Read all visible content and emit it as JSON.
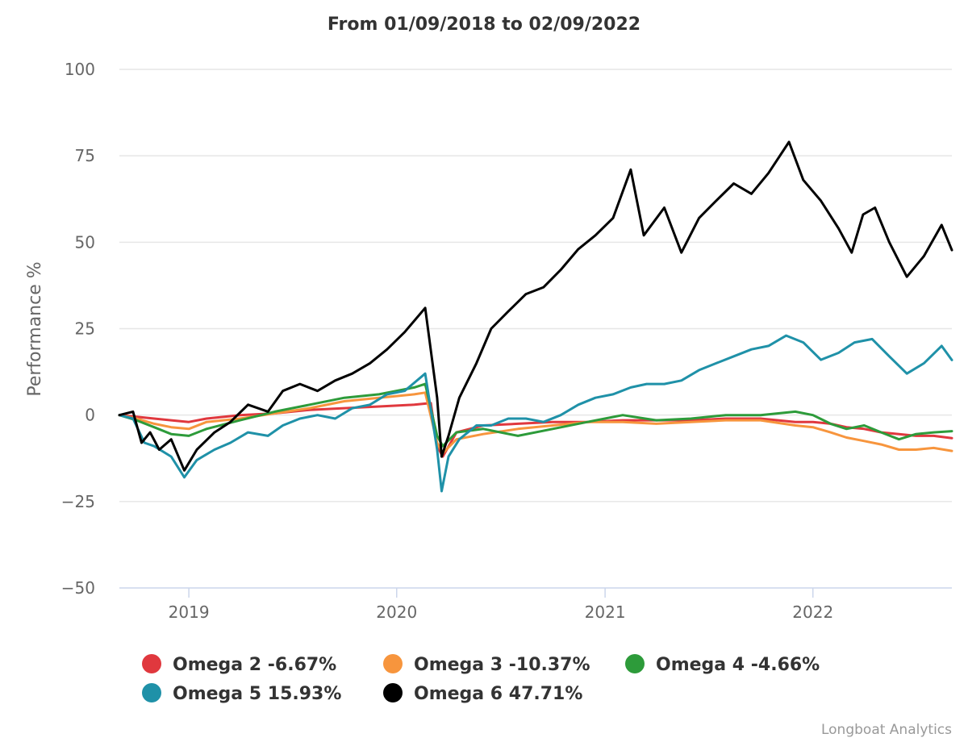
{
  "chart_data": {
    "type": "line",
    "title": "From 01/09/2018 to 02/09/2022",
    "ylabel": "Performance %",
    "xlabel": "",
    "ylim": [
      -50,
      100
    ],
    "xlim": [
      "2018-09-01",
      "2022-09-02"
    ],
    "yticks": [
      "100",
      "75",
      "50",
      "25",
      "0",
      "−25",
      "−50"
    ],
    "ytick_values": [
      100,
      75,
      50,
      25,
      0,
      -25,
      -50
    ],
    "xticks": [
      {
        "label": "2019",
        "date": "2019-01-01"
      },
      {
        "label": "2020",
        "date": "2020-01-01"
      },
      {
        "label": "2021",
        "date": "2021-01-01"
      },
      {
        "label": "2022",
        "date": "2022-01-01"
      }
    ],
    "grid": true,
    "legend_position": "bottom",
    "series": [
      {
        "name": "Omega 2 -6.67%",
        "color": "#e0383e",
        "points": [
          [
            "2018-09-01",
            0
          ],
          [
            "2018-10-01",
            -0.5
          ],
          [
            "2018-11-01",
            -1.0
          ],
          [
            "2018-12-01",
            -1.5
          ],
          [
            "2019-01-01",
            -2.0
          ],
          [
            "2019-02-01",
            -1.0
          ],
          [
            "2019-04-01",
            0
          ],
          [
            "2019-06-01",
            0.5
          ],
          [
            "2019-08-01",
            1.5
          ],
          [
            "2019-10-01",
            2.0
          ],
          [
            "2019-12-01",
            2.5
          ],
          [
            "2020-02-01",
            3.0
          ],
          [
            "2020-03-01",
            3.5
          ],
          [
            "2020-03-12",
            -9
          ],
          [
            "2020-03-22",
            -12
          ],
          [
            "2020-04-15",
            -5
          ],
          [
            "2020-06-01",
            -3
          ],
          [
            "2020-08-01",
            -2.5
          ],
          [
            "2020-10-01",
            -2
          ],
          [
            "2020-12-01",
            -2
          ],
          [
            "2021-02-01",
            -1.5
          ],
          [
            "2021-04-01",
            -1.5
          ],
          [
            "2021-06-01",
            -1.5
          ],
          [
            "2021-08-01",
            -1.0
          ],
          [
            "2021-10-01",
            -1.0
          ],
          [
            "2021-12-01",
            -2
          ],
          [
            "2022-01-01",
            -2
          ],
          [
            "2022-02-01",
            -2.5
          ],
          [
            "2022-03-01",
            -3.5
          ],
          [
            "2022-04-01",
            -4
          ],
          [
            "2022-05-01",
            -5
          ],
          [
            "2022-06-01",
            -5.5
          ],
          [
            "2022-07-01",
            -6
          ],
          [
            "2022-08-01",
            -6
          ],
          [
            "2022-09-02",
            -6.67
          ]
        ]
      },
      {
        "name": "Omega 3 -10.37%",
        "color": "#f7953d",
        "points": [
          [
            "2018-09-01",
            0
          ],
          [
            "2018-10-01",
            -1
          ],
          [
            "2018-11-01",
            -2.5
          ],
          [
            "2018-12-01",
            -3.5
          ],
          [
            "2019-01-01",
            -4
          ],
          [
            "2019-02-01",
            -2
          ],
          [
            "2019-04-01",
            -1
          ],
          [
            "2019-06-01",
            0.5
          ],
          [
            "2019-08-01",
            2
          ],
          [
            "2019-10-01",
            4
          ],
          [
            "2019-12-01",
            5
          ],
          [
            "2020-02-01",
            6
          ],
          [
            "2020-02-20",
            6.5
          ],
          [
            "2020-03-12",
            -8
          ],
          [
            "2020-03-22",
            -11
          ],
          [
            "2020-04-15",
            -7
          ],
          [
            "2020-06-01",
            -5.5
          ],
          [
            "2020-08-01",
            -4
          ],
          [
            "2020-10-01",
            -3
          ],
          [
            "2020-12-01",
            -2
          ],
          [
            "2021-02-01",
            -2
          ],
          [
            "2021-04-01",
            -2.5
          ],
          [
            "2021-06-01",
            -2
          ],
          [
            "2021-08-01",
            -1.5
          ],
          [
            "2021-10-01",
            -1.5
          ],
          [
            "2021-12-01",
            -3
          ],
          [
            "2022-01-01",
            -3.5
          ],
          [
            "2022-02-01",
            -5
          ],
          [
            "2022-03-01",
            -6.5
          ],
          [
            "2022-04-01",
            -7.5
          ],
          [
            "2022-05-01",
            -8.5
          ],
          [
            "2022-06-01",
            -10
          ],
          [
            "2022-07-01",
            -10
          ],
          [
            "2022-08-01",
            -9.5
          ],
          [
            "2022-09-02",
            -10.37
          ]
        ]
      },
      {
        "name": "Omega 4 -4.66%",
        "color": "#2d9b3a",
        "points": [
          [
            "2018-09-01",
            0
          ],
          [
            "2018-10-01",
            -1.5
          ],
          [
            "2018-11-01",
            -3.5
          ],
          [
            "2018-12-01",
            -5.5
          ],
          [
            "2019-01-01",
            -6
          ],
          [
            "2019-02-01",
            -4
          ],
          [
            "2019-04-01",
            -1.5
          ],
          [
            "2019-06-01",
            1
          ],
          [
            "2019-08-01",
            3
          ],
          [
            "2019-10-01",
            5
          ],
          [
            "2019-12-01",
            6
          ],
          [
            "2020-02-01",
            8
          ],
          [
            "2020-02-20",
            9
          ],
          [
            "2020-03-12",
            -6
          ],
          [
            "2020-03-22",
            -9
          ],
          [
            "2020-04-15",
            -5
          ],
          [
            "2020-06-01",
            -4
          ],
          [
            "2020-08-01",
            -6
          ],
          [
            "2020-10-01",
            -4
          ],
          [
            "2020-12-01",
            -2
          ],
          [
            "2021-02-01",
            0
          ],
          [
            "2021-04-01",
            -1.5
          ],
          [
            "2021-06-01",
            -1
          ],
          [
            "2021-08-01",
            0
          ],
          [
            "2021-10-01",
            0
          ],
          [
            "2021-12-01",
            1
          ],
          [
            "2022-01-01",
            0
          ],
          [
            "2022-02-01",
            -2.5
          ],
          [
            "2022-03-01",
            -4
          ],
          [
            "2022-04-01",
            -3
          ],
          [
            "2022-05-01",
            -5
          ],
          [
            "2022-06-01",
            -7
          ],
          [
            "2022-07-01",
            -5.5
          ],
          [
            "2022-08-01",
            -5
          ],
          [
            "2022-09-02",
            -4.66
          ]
        ]
      },
      {
        "name": "Omega 5 15.93%",
        "color": "#1f91a8",
        "points": [
          [
            "2018-09-01",
            0
          ],
          [
            "2018-09-25",
            -1
          ],
          [
            "2018-10-15",
            -8
          ],
          [
            "2018-11-01",
            -9
          ],
          [
            "2018-12-01",
            -12
          ],
          [
            "2018-12-24",
            -18
          ],
          [
            "2019-01-15",
            -13
          ],
          [
            "2019-02-15",
            -10
          ],
          [
            "2019-03-15",
            -8
          ],
          [
            "2019-04-15",
            -5
          ],
          [
            "2019-05-20",
            -6
          ],
          [
            "2019-06-15",
            -3
          ],
          [
            "2019-07-15",
            -1
          ],
          [
            "2019-08-15",
            0
          ],
          [
            "2019-09-15",
            -1
          ],
          [
            "2019-10-15",
            2
          ],
          [
            "2019-11-15",
            3
          ],
          [
            "2019-12-15",
            6
          ],
          [
            "2020-01-15",
            7
          ],
          [
            "2020-02-20",
            12
          ],
          [
            "2020-03-12",
            -10
          ],
          [
            "2020-03-20",
            -22
          ],
          [
            "2020-04-01",
            -12
          ],
          [
            "2020-04-20",
            -7
          ],
          [
            "2020-05-20",
            -3
          ],
          [
            "2020-06-15",
            -3
          ],
          [
            "2020-07-15",
            -1
          ],
          [
            "2020-08-15",
            -1
          ],
          [
            "2020-09-15",
            -2
          ],
          [
            "2020-10-15",
            0
          ],
          [
            "2020-11-15",
            3
          ],
          [
            "2020-12-15",
            5
          ],
          [
            "2021-01-15",
            6
          ],
          [
            "2021-02-15",
            8
          ],
          [
            "2021-03-15",
            9
          ],
          [
            "2021-04-15",
            9
          ],
          [
            "2021-05-15",
            10
          ],
          [
            "2021-06-15",
            13
          ],
          [
            "2021-07-15",
            15
          ],
          [
            "2021-08-15",
            17
          ],
          [
            "2021-09-15",
            19
          ],
          [
            "2021-10-15",
            20
          ],
          [
            "2021-11-15",
            23
          ],
          [
            "2021-12-15",
            21
          ],
          [
            "2022-01-15",
            16
          ],
          [
            "2022-02-15",
            18
          ],
          [
            "2022-03-15",
            21
          ],
          [
            "2022-04-15",
            22
          ],
          [
            "2022-05-15",
            17
          ],
          [
            "2022-06-15",
            12
          ],
          [
            "2022-07-15",
            15
          ],
          [
            "2022-08-15",
            20
          ],
          [
            "2022-09-02",
            15.93
          ]
        ]
      },
      {
        "name": "Omega 6 47.71%",
        "color": "#000000",
        "points": [
          [
            "2018-09-01",
            0
          ],
          [
            "2018-09-25",
            1
          ],
          [
            "2018-10-10",
            -8
          ],
          [
            "2018-10-25",
            -5
          ],
          [
            "2018-11-10",
            -10
          ],
          [
            "2018-12-01",
            -7
          ],
          [
            "2018-12-24",
            -16
          ],
          [
            "2019-01-15",
            -10
          ],
          [
            "2019-02-15",
            -5
          ],
          [
            "2019-03-15",
            -2
          ],
          [
            "2019-04-15",
            3
          ],
          [
            "2019-05-20",
            1
          ],
          [
            "2019-06-15",
            7
          ],
          [
            "2019-07-15",
            9
          ],
          [
            "2019-08-15",
            7
          ],
          [
            "2019-09-15",
            10
          ],
          [
            "2019-10-15",
            12
          ],
          [
            "2019-11-15",
            15
          ],
          [
            "2019-12-15",
            19
          ],
          [
            "2020-01-15",
            24
          ],
          [
            "2020-02-20",
            31
          ],
          [
            "2020-03-12",
            5
          ],
          [
            "2020-03-20",
            -12
          ],
          [
            "2020-04-01",
            -6
          ],
          [
            "2020-04-20",
            5
          ],
          [
            "2020-05-20",
            15
          ],
          [
            "2020-06-15",
            25
          ],
          [
            "2020-07-15",
            30
          ],
          [
            "2020-08-15",
            35
          ],
          [
            "2020-09-15",
            37
          ],
          [
            "2020-10-15",
            42
          ],
          [
            "2020-11-15",
            48
          ],
          [
            "2020-12-15",
            52
          ],
          [
            "2021-01-15",
            57
          ],
          [
            "2021-02-15",
            71
          ],
          [
            "2021-03-10",
            52
          ],
          [
            "2021-04-15",
            60
          ],
          [
            "2021-05-15",
            47
          ],
          [
            "2021-06-15",
            57
          ],
          [
            "2021-07-15",
            62
          ],
          [
            "2021-08-15",
            67
          ],
          [
            "2021-09-15",
            64
          ],
          [
            "2021-10-15",
            70
          ],
          [
            "2021-11-20",
            79
          ],
          [
            "2021-12-15",
            68
          ],
          [
            "2022-01-15",
            62
          ],
          [
            "2022-02-15",
            54
          ],
          [
            "2022-03-10",
            47
          ],
          [
            "2022-03-30",
            58
          ],
          [
            "2022-04-20",
            60
          ],
          [
            "2022-05-15",
            50
          ],
          [
            "2022-06-15",
            40
          ],
          [
            "2022-07-15",
            46
          ],
          [
            "2022-08-15",
            55
          ],
          [
            "2022-09-02",
            47.71
          ]
        ]
      }
    ],
    "credits": "Longboat Analytics"
  }
}
